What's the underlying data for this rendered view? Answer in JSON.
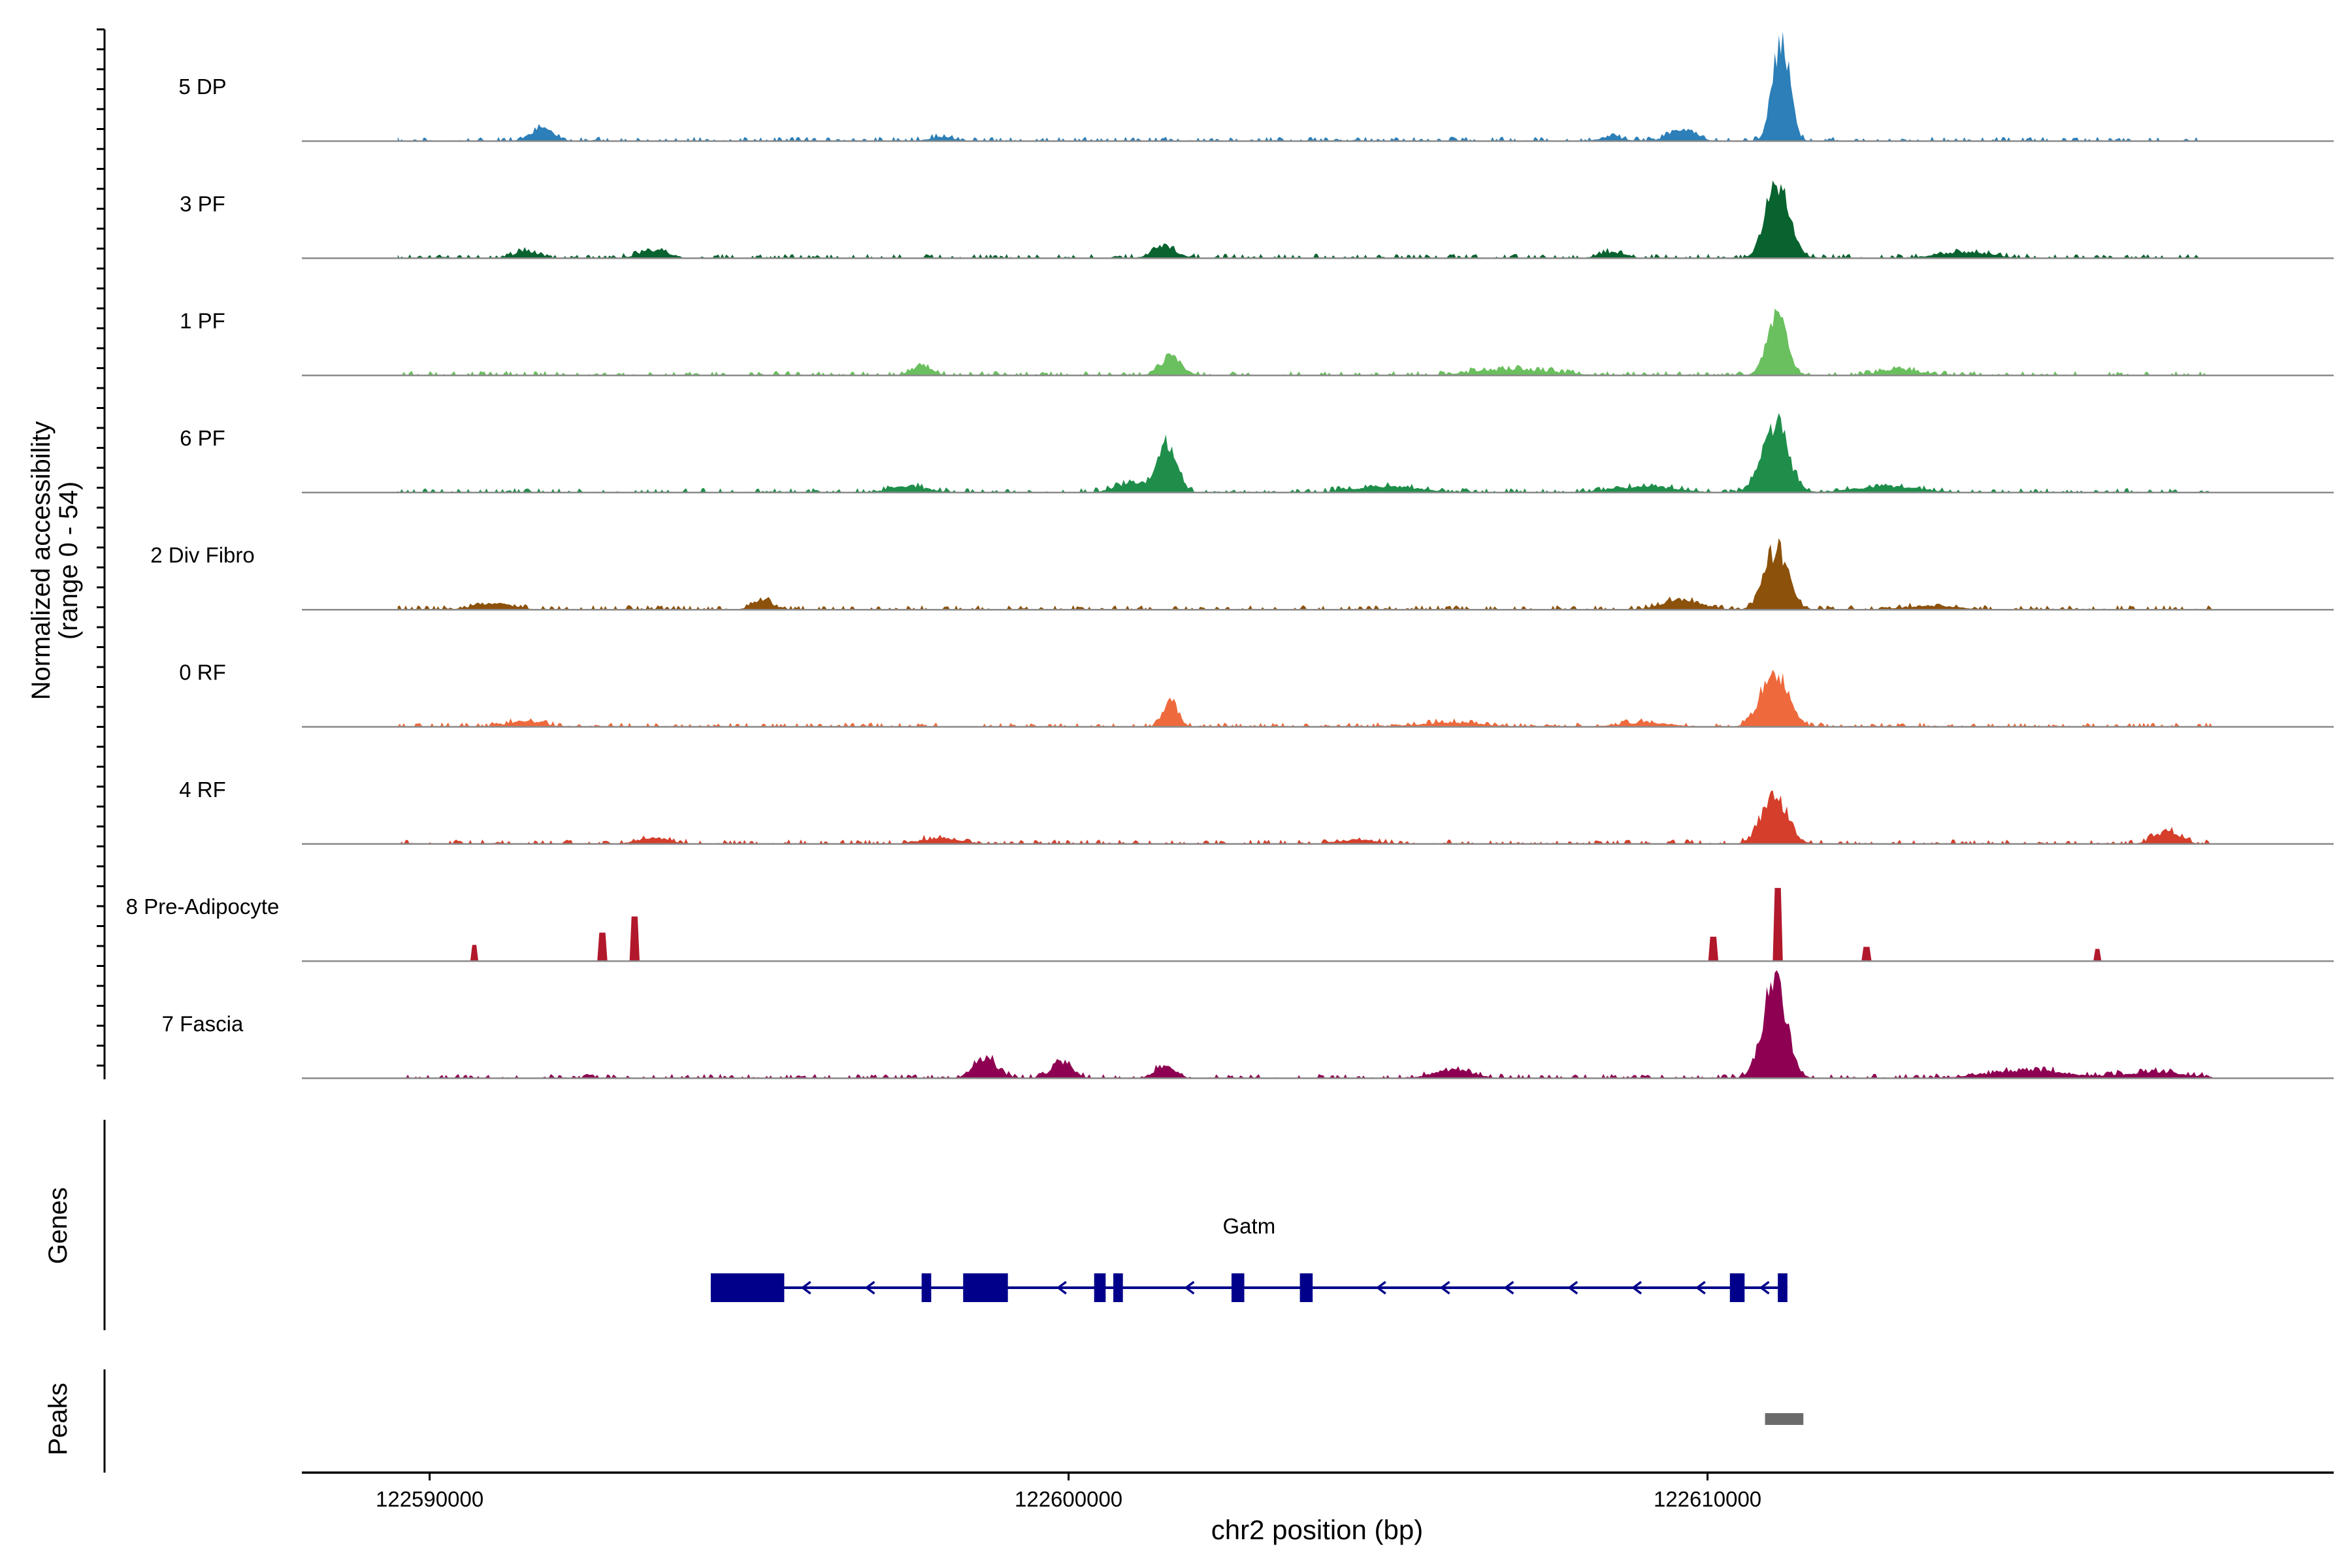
{
  "chart_data": {
    "type": "area",
    "title": "",
    "region": {
      "chromosome": "chr2",
      "start": 122588000,
      "end": 122619800
    },
    "coverage": {
      "ylabel_line1": "Normalized accessibility",
      "ylabel_line2": "(range 0 - 54)",
      "ylim": [
        0,
        54
      ],
      "tracks": [
        {
          "name": "5 DP",
          "color": "#2C7FB8",
          "peaks": [
            [
              122591750,
              6,
              180
            ],
            [
              122598000,
              2,
              180
            ],
            [
              122608500,
              2,
              180
            ],
            [
              122609600,
              6,
              200
            ],
            [
              122611150,
              50,
              130
            ]
          ]
        },
        {
          "name": "3 PF",
          "color": "#08632F",
          "peaks": [
            [
              122591500,
              3,
              200
            ],
            [
              122593500,
              4,
              220
            ],
            [
              122601500,
              6,
              180
            ],
            [
              122608500,
              3,
              200
            ],
            [
              122611100,
              38,
              180
            ],
            [
              122614000,
              3,
              400
            ]
          ]
        },
        {
          "name": "1 PF",
          "color": "#6ABF5E",
          "peaks": [
            [
              122597700,
              5,
              150
            ],
            [
              122601600,
              9,
              160
            ],
            [
              122611080,
              32,
              150
            ],
            [
              122613000,
              3,
              300
            ],
            [
              122607000,
              3,
              600
            ]
          ]
        },
        {
          "name": "6 PF",
          "color": "#1F8E4A",
          "peaks": [
            [
              122601550,
              24,
              150
            ],
            [
              122601000,
              5,
              250
            ],
            [
              122597500,
              3,
              300
            ],
            [
              122611050,
              35,
              200
            ],
            [
              122609000,
              3,
              500
            ],
            [
              122612800,
              3,
              500
            ],
            [
              122605000,
              3,
              500
            ]
          ]
        },
        {
          "name": "2 Div Fibro",
          "color": "#8C510A",
          "peaks": [
            [
              122595200,
              5,
              150
            ],
            [
              122591000,
              3,
              300
            ],
            [
              122611080,
              30,
              180
            ],
            [
              122609600,
              5,
              300
            ],
            [
              122613500,
              2,
              400
            ]
          ]
        },
        {
          "name": "0 RF",
          "color": "#EE6A3D",
          "peaks": [
            [
              122591500,
              3,
              250
            ],
            [
              122601600,
              12,
              110
            ],
            [
              122611050,
              28,
              200
            ],
            [
              122606000,
              2,
              500
            ],
            [
              122609000,
              2,
              400
            ]
          ]
        },
        {
          "name": "4 RF",
          "color": "#D53E2A",
          "peaks": [
            [
              122611050,
              24,
              200
            ],
            [
              122593500,
              3,
              250
            ],
            [
              122604500,
              2,
              300
            ],
            [
              122617200,
              6,
              200
            ],
            [
              122598000,
              3,
              300
            ]
          ]
        },
        {
          "name": "8 Pre-Adipocyte",
          "color": "#B2182B",
          "discrete": true,
          "peaks": [
            [
              122590700,
              8,
              60
            ],
            [
              122592700,
              14,
              60
            ],
            [
              122593200,
              22,
              60
            ],
            [
              122610100,
              12,
              60
            ],
            [
              122611100,
              36,
              60
            ],
            [
              122612500,
              7,
              60
            ],
            [
              122616100,
              6,
              60
            ]
          ]
        },
        {
          "name": "7 Fascia",
          "color": "#8E0152",
          "peaks": [
            [
              122598700,
              10,
              180
            ],
            [
              122599900,
              8,
              160
            ],
            [
              122601500,
              6,
              150
            ],
            [
              122611050,
              48,
              180
            ],
            [
              122606000,
              4,
              300
            ],
            [
              122615000,
              4,
              600
            ],
            [
              122617000,
              3,
              500
            ]
          ]
        }
      ]
    },
    "genes": {
      "ylabel": "Genes",
      "items": [
        {
          "name": "Gatm",
          "strand": "-",
          "start": 122594400,
          "end": 122611250,
          "exons": [
            [
              122594400,
              122595550
            ],
            [
              122597700,
              122597850
            ],
            [
              122598350,
              122599050
            ],
            [
              122600400,
              122600580
            ],
            [
              122600700,
              122600850
            ],
            [
              122602550,
              122602750
            ],
            [
              122603620,
              122603820
            ],
            [
              122610350,
              122610580
            ],
            [
              122611100,
              122611250
            ]
          ]
        }
      ]
    },
    "peaks": {
      "ylabel": "Peaks",
      "regions": [
        [
          122610900,
          122611500
        ]
      ]
    },
    "xaxis": {
      "label": "chr2 position (bp)",
      "ticks": [
        122590000,
        122600000,
        122610000
      ]
    }
  }
}
